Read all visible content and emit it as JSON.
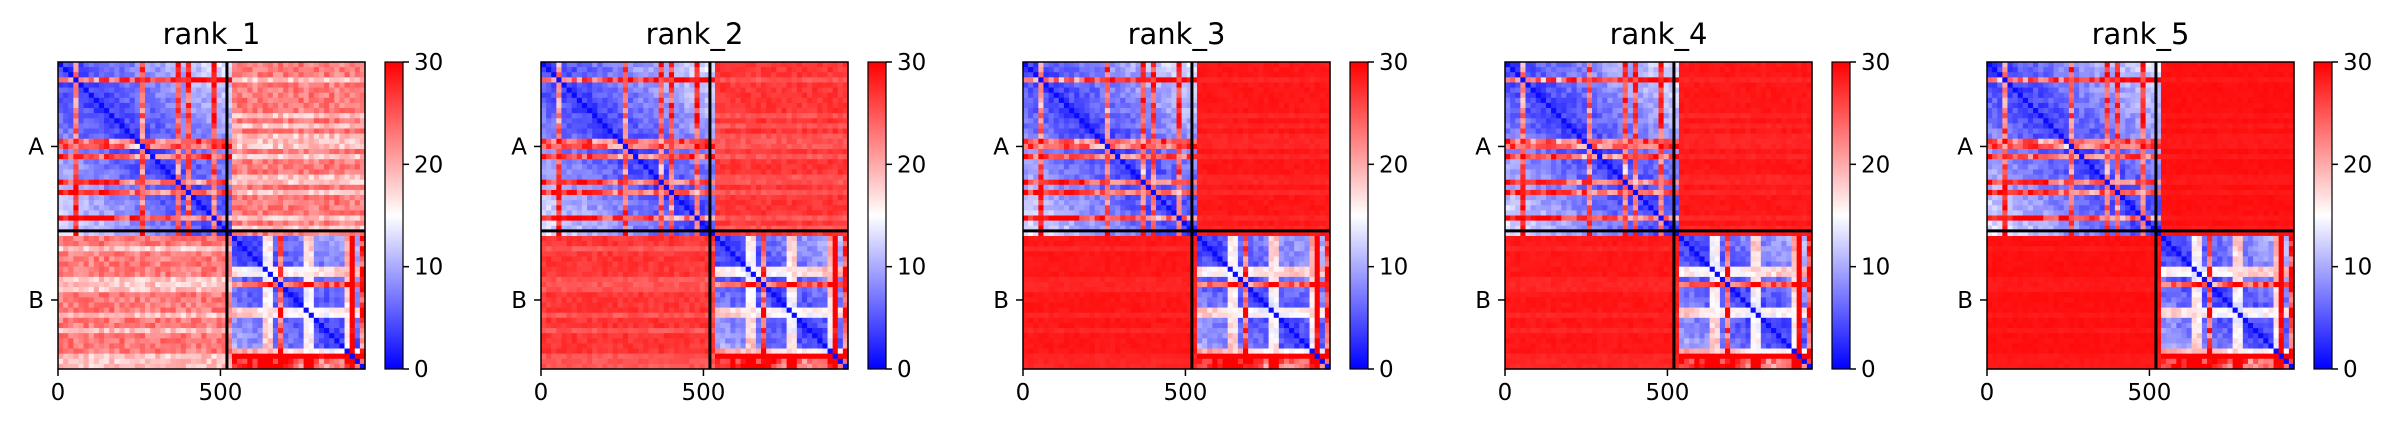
{
  "panels": [
    {
      "title": "rank_1",
      "offdiag_level": 0.84
    },
    {
      "title": "rank_2",
      "offdiag_level": 0.93
    },
    {
      "title": "rank_3",
      "offdiag_level": 0.97
    },
    {
      "title": "rank_4",
      "offdiag_level": 0.97
    },
    {
      "title": "rank_5",
      "offdiag_level": 0.98
    }
  ],
  "chart_data": {
    "type": "heatmap",
    "x_ticks": [
      "0",
      "500"
    ],
    "x_tick_values": [
      0,
      500
    ],
    "y_labels": [
      "A",
      "B"
    ],
    "chain_boundary": 520,
    "total_length": 945,
    "colorbar": {
      "min": 0,
      "max": 30,
      "ticks": [
        "0",
        "10",
        "20",
        "30"
      ],
      "tick_values": [
        0,
        10,
        20,
        30
      ]
    },
    "colormap": [
      "#0000ff",
      "#ffffff",
      "#ff0000"
    ]
  }
}
